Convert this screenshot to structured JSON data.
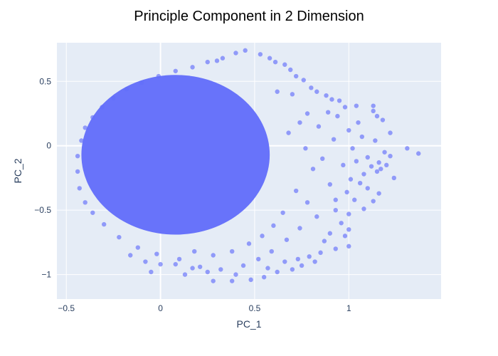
{
  "chart_data": {
    "type": "scatter",
    "title": "Principle Component in 2 Dimension",
    "xlabel": "PC_1",
    "ylabel": "PC_2",
    "xlim": [
      -0.55,
      1.49
    ],
    "ylim": [
      -1.19,
      0.8
    ],
    "x_ticks": [
      -0.5,
      0,
      0.5,
      1
    ],
    "x_tick_labels": [
      "−0.5",
      "0",
      "0.5",
      "1"
    ],
    "y_ticks": [
      -1,
      -0.5,
      0,
      0.5
    ],
    "y_tick_labels": [
      "−1",
      "−0.5",
      "0",
      "0.5"
    ],
    "grid": true,
    "zero_lines": true,
    "legend": false,
    "plot_background": "#e5ecf6",
    "grid_color": "#ffffff",
    "marker_color": "#636efa",
    "marker_opacity": 0.65,
    "series": [
      {
        "dense_core": {
          "shape": "filled-ellipse",
          "center": [
            0.08,
            -0.07
          ],
          "semi_axes": [
            0.5,
            0.62
          ]
        },
        "points": [
          [
            1.31,
            -0.02
          ],
          [
            1.37,
            -0.06
          ],
          [
            1.13,
            0.31
          ],
          [
            1.13,
            0.27
          ],
          [
            1.15,
            0.23
          ],
          [
            1.22,
            0.1
          ],
          [
            1.18,
            0.2
          ],
          [
            1.19,
            -0.05
          ],
          [
            1.22,
            -0.08
          ],
          [
            1.14,
            0.04
          ],
          [
            1.1,
            -0.09
          ],
          [
            1.16,
            -0.13
          ],
          [
            1.2,
            -0.15
          ],
          [
            1.17,
            -0.18
          ],
          [
            1.15,
            -0.2
          ],
          [
            1.12,
            -0.16
          ],
          [
            1.08,
            -0.22
          ],
          [
            1.24,
            -0.25
          ],
          [
            1.06,
            -0.29
          ],
          [
            1.1,
            -0.33
          ],
          [
            1.16,
            -0.37
          ],
          [
            1.13,
            -0.43
          ],
          [
            1.03,
            -0.42
          ],
          [
            1.08,
            -0.49
          ],
          [
            1.0,
            -0.53
          ],
          [
            0.96,
            -0.6
          ],
          [
            1.0,
            -0.65
          ],
          [
            0.98,
            -0.7
          ],
          [
            1.0,
            -0.78
          ],
          [
            0.93,
            -0.8
          ],
          [
            0.85,
            -0.83
          ],
          [
            0.79,
            -0.86
          ],
          [
            0.82,
            -0.9
          ],
          [
            0.75,
            -0.93
          ],
          [
            0.7,
            -0.96
          ],
          [
            0.62,
            -0.98
          ],
          [
            0.55,
            -1.02
          ],
          [
            0.48,
            -1.04
          ],
          [
            0.4,
            -1.0
          ],
          [
            0.38,
            -1.05
          ],
          [
            0.28,
            -1.05
          ],
          [
            0.25,
            -0.98
          ],
          [
            0.17,
            -0.95
          ],
          [
            0.08,
            -0.92
          ],
          [
            0.0,
            -0.92
          ],
          [
            -0.08,
            -0.9
          ],
          [
            -0.16,
            -0.85
          ],
          [
            -0.05,
            -0.98
          ],
          [
            0.13,
            -1.0
          ],
          [
            0.45,
            0.74
          ],
          [
            0.4,
            0.72
          ],
          [
            0.33,
            0.68
          ],
          [
            0.3,
            0.66
          ],
          [
            0.25,
            0.65
          ],
          [
            0.53,
            0.71
          ],
          [
            0.58,
            0.68
          ],
          [
            0.61,
            0.65
          ],
          [
            0.66,
            0.63
          ],
          [
            0.69,
            0.59
          ],
          [
            0.72,
            0.54
          ],
          [
            0.76,
            0.51
          ],
          [
            0.8,
            0.45
          ],
          [
            0.83,
            0.42
          ],
          [
            0.88,
            0.39
          ],
          [
            0.91,
            0.36
          ],
          [
            0.95,
            0.35
          ],
          [
            0.98,
            0.3
          ],
          [
            1.04,
            0.31
          ],
          [
            0.94,
            0.23
          ],
          [
            0.89,
            0.26
          ],
          [
            0.78,
            0.25
          ],
          [
            0.84,
            0.15
          ],
          [
            0.92,
            0.05
          ],
          [
            0.86,
            -0.1
          ],
          [
            0.9,
            -0.3
          ],
          [
            0.93,
            -0.42
          ],
          [
            0.83,
            -0.55
          ],
          [
            0.74,
            -0.64
          ],
          [
            0.67,
            -0.73
          ],
          [
            0.59,
            -0.82
          ],
          [
            0.52,
            -0.88
          ],
          [
            0.44,
            -0.93
          ],
          [
            0.32,
            -0.96
          ],
          [
            0.21,
            -0.94
          ],
          [
            0.1,
            -0.88
          ],
          [
            -0.02,
            -0.84
          ],
          [
            -0.12,
            -0.79
          ],
          [
            -0.22,
            -0.71
          ],
          [
            -0.3,
            -0.61
          ],
          [
            -0.36,
            -0.52
          ],
          [
            -0.4,
            -0.44
          ],
          [
            -0.43,
            -0.33
          ],
          [
            -0.44,
            -0.2
          ],
          [
            -0.44,
            -0.08
          ],
          [
            -0.42,
            0.04
          ],
          [
            -0.4,
            0.14
          ],
          [
            -0.36,
            0.22
          ],
          [
            -0.31,
            0.3
          ],
          [
            -0.25,
            0.37
          ],
          [
            -0.18,
            0.44
          ],
          [
            -0.1,
            0.49
          ],
          [
            -0.01,
            0.54
          ],
          [
            0.08,
            0.58
          ],
          [
            0.17,
            0.61
          ],
          [
            0.62,
            0.42
          ],
          [
            0.7,
            0.4
          ],
          [
            0.74,
            0.18
          ],
          [
            0.68,
            0.1
          ],
          [
            0.77,
            -0.02
          ],
          [
            0.81,
            -0.18
          ],
          [
            0.72,
            -0.35
          ],
          [
            0.78,
            -0.44
          ],
          [
            0.65,
            -0.52
          ],
          [
            0.6,
            -0.62
          ],
          [
            0.54,
            -0.7
          ],
          [
            0.47,
            -0.76
          ],
          [
            0.38,
            -0.82
          ],
          [
            0.28,
            -0.85
          ],
          [
            0.18,
            -0.82
          ],
          [
            1.0,
            0.12
          ],
          [
            1.05,
            0.18
          ],
          [
            1.02,
            -0.02
          ],
          [
            1.07,
            0.07
          ],
          [
            0.97,
            -0.15
          ],
          [
            1.04,
            -0.12
          ],
          [
            0.99,
            -0.36
          ],
          [
            1.01,
            -0.26
          ],
          [
            0.93,
            -0.5
          ],
          [
            0.9,
            -0.68
          ],
          [
            0.87,
            -0.74
          ],
          [
            0.73,
            -0.88
          ],
          [
            0.66,
            -0.9
          ],
          [
            0.57,
            -0.95
          ]
        ]
      }
    ]
  }
}
